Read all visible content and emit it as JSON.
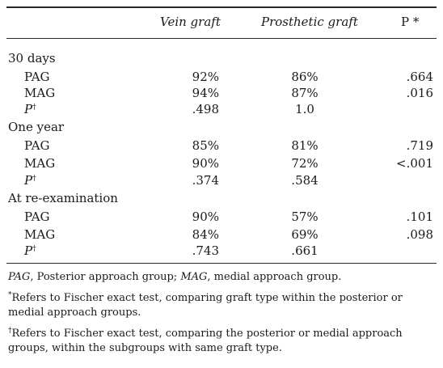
{
  "header": {
    "col1": "Vein graft",
    "col2": "Prosthetic graft",
    "col3": "P *"
  },
  "groups": [
    {
      "title": "30 days",
      "rows": [
        {
          "label": "PAG",
          "vein": "92%",
          "prosthetic": "86%",
          "p": ".664"
        },
        {
          "label": "MAG",
          "vein": "94%",
          "prosthetic": "87%",
          "p": ".016"
        },
        {
          "label": "P",
          "mark": "†",
          "vein": ".498",
          "prosthetic": "1.0",
          "p": ""
        }
      ]
    },
    {
      "title": "One year",
      "rows": [
        {
          "label": "PAG",
          "vein": "85%",
          "prosthetic": "81%",
          "p": ".719"
        },
        {
          "label": "MAG",
          "vein": "90%",
          "prosthetic": "72%",
          "p": "<.001"
        },
        {
          "label": "P",
          "mark": "†",
          "vein": ".374",
          "prosthetic": ".584",
          "p": ""
        }
      ]
    },
    {
      "title": "At re-examination",
      "rows": [
        {
          "label": "PAG",
          "vein": "90%",
          "prosthetic": "57%",
          "p": ".101"
        },
        {
          "label": "MAG",
          "vein": "84%",
          "prosthetic": "69%",
          "p": ".098"
        },
        {
          "label": "P",
          "mark": "†",
          "vein": ".743",
          "prosthetic": ".661",
          "p": ""
        }
      ]
    }
  ],
  "footnotes": {
    "abbrev_pag": "PAG",
    "abbrev_pag_text": ", Posterior approach group; ",
    "abbrev_mag": "MAG",
    "abbrev_mag_text": ", medial approach group.",
    "star_mark": "*",
    "star_text": "Refers to Fischer exact test, comparing graft type within the posterior or medial approach groups.",
    "dagger_mark": "†",
    "dagger_text": "Refers to Fischer exact test, comparing the posterior or medial approach groups, within the subgroups with same graft type."
  }
}
